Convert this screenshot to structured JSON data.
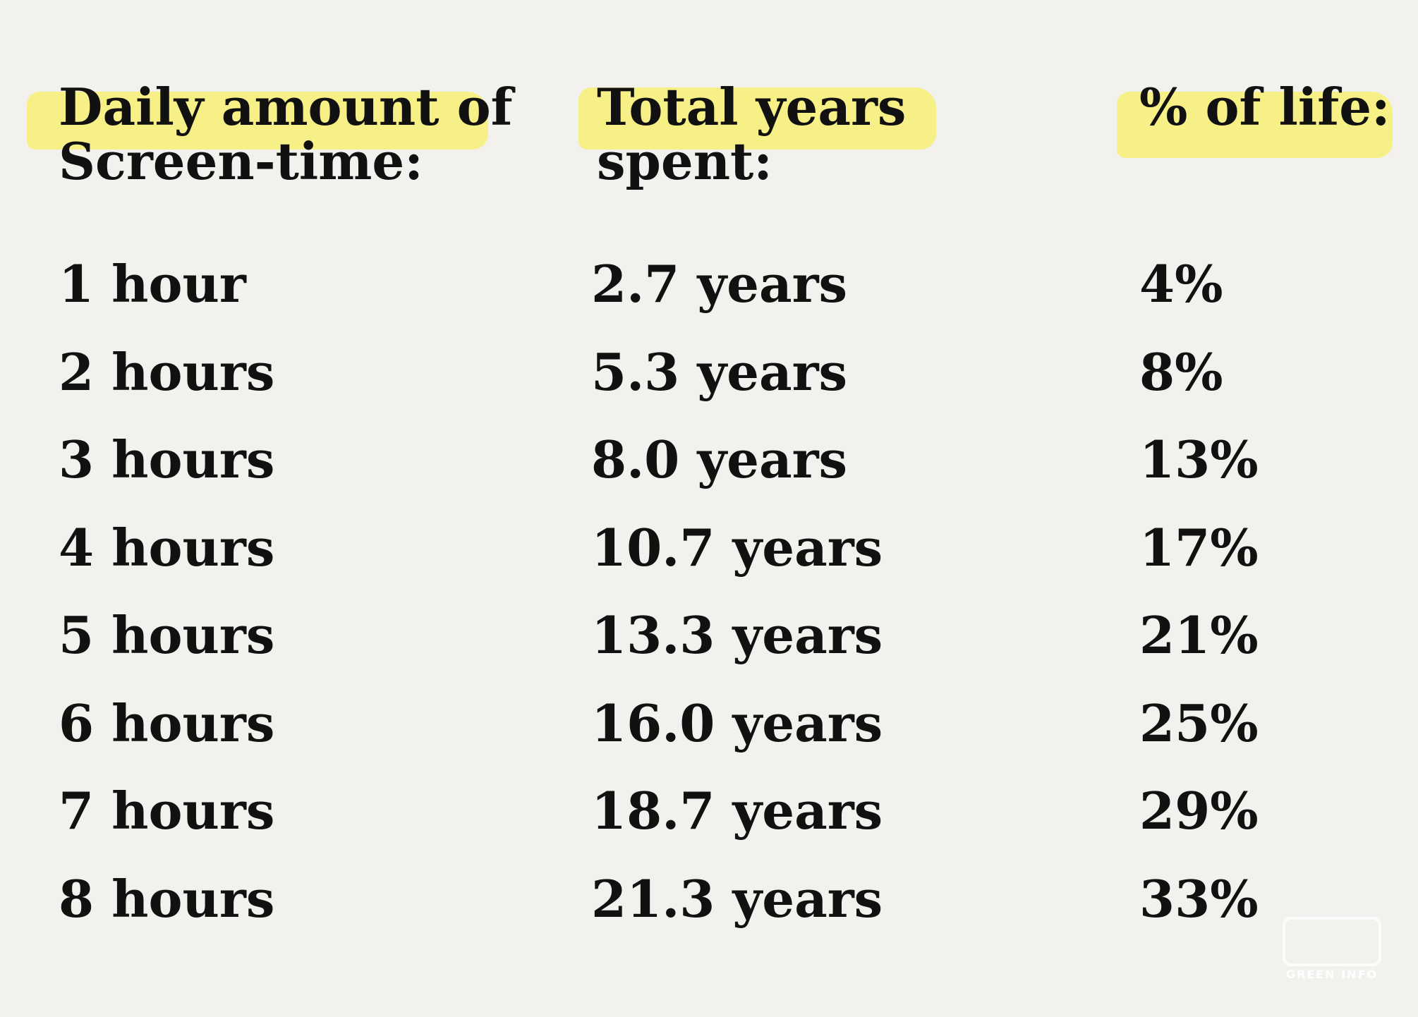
{
  "table": {
    "headers": [
      [
        "Daily amount of",
        "Screen-time:"
      ],
      [
        "Total years",
        "spent:"
      ],
      [
        "% of life:"
      ]
    ],
    "rows": [
      [
        "1 hour",
        "2.7 years",
        "4%"
      ],
      [
        "2 hours",
        "5.3 years",
        "8%"
      ],
      [
        "3 hours",
        "8.0 years",
        "13%"
      ],
      [
        "4 hours",
        "10.7 years",
        "17%"
      ],
      [
        "5 hours",
        "13.3 years",
        "21%"
      ],
      [
        "6 hours",
        "16.0 years",
        "25%"
      ],
      [
        "7 hours",
        "18.7 years",
        "29%"
      ],
      [
        "8 hours",
        "21.3 years",
        "33%"
      ]
    ]
  },
  "watermark": "GREEN INFO"
}
